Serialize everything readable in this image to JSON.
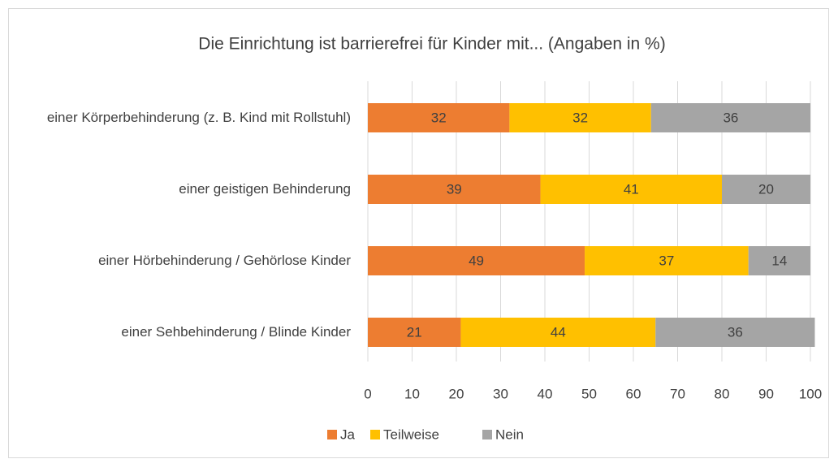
{
  "chart_data": {
    "type": "bar",
    "orientation": "horizontal",
    "stacked": true,
    "title": "Die Einrichtung ist barrierefrei für Kinder mit... (Angaben in %)",
    "categories": [
      "einer Körperbehinderung (z. B. Kind mit Rollstuhl)",
      "einer geistigen Behinderung",
      "einer Hörbehinderung / Gehörlose Kinder",
      "einer Sehbehinderung / Blinde Kinder"
    ],
    "series": [
      {
        "name": "Ja",
        "color": "#ed7d31",
        "values": [
          32,
          39,
          49,
          21
        ]
      },
      {
        "name": "Teilweise",
        "color": "#ffc000",
        "values": [
          32,
          41,
          37,
          44
        ]
      },
      {
        "name": "Nein",
        "color": "#a5a5a5",
        "values": [
          36,
          20,
          14,
          36
        ]
      }
    ],
    "xlim": [
      0,
      100
    ],
    "xticks": [
      0,
      10,
      20,
      30,
      40,
      50,
      60,
      70,
      80,
      90,
      100
    ],
    "grid": true,
    "legend": "bottom"
  }
}
